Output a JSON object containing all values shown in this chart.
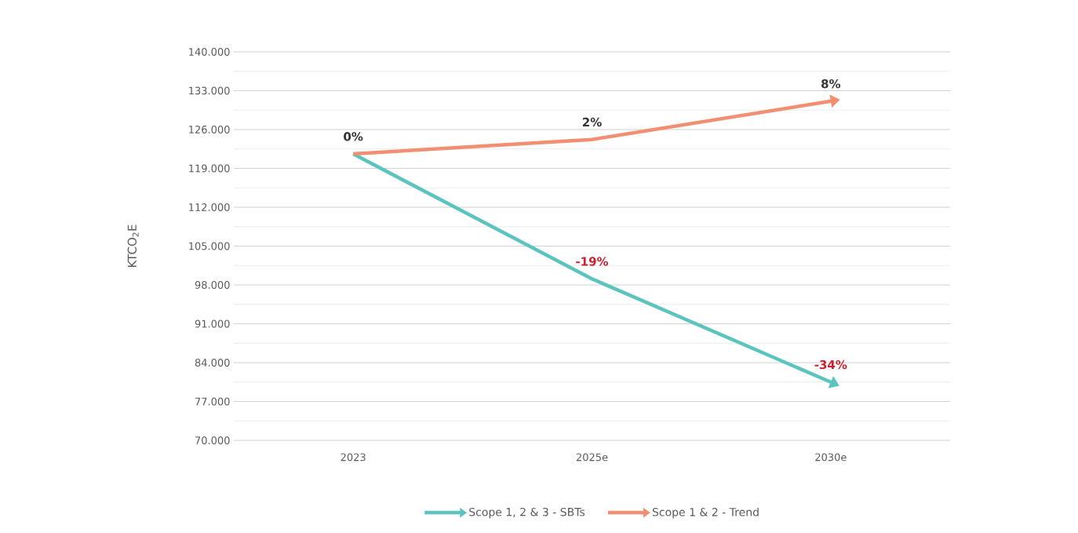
{
  "chart_data": {
    "type": "line",
    "ylabel": "KTCO$_{2}$E",
    "categories": [
      "2023",
      "2025e",
      "2030e"
    ],
    "series": [
      {
        "name": "Scope 1, 2 & 3 - SBTs",
        "color": "#5bc4bf",
        "values": [
          121600,
          99100,
          80500
        ]
      },
      {
        "name": "Scope 1 & 2 - Trend",
        "color": "#f28e72",
        "values": [
          121600,
          124200,
          131100
        ]
      }
    ],
    "annotations": [
      {
        "text": "0%",
        "x": "2023",
        "y": 121600
      },
      {
        "text": "2%",
        "x": "2025e",
        "y": 124200
      },
      {
        "text": "8%",
        "x": "2030e",
        "y": 131100
      },
      {
        "text": "-19%",
        "x": "2025e",
        "y": 99100
      },
      {
        "text": "-34%",
        "x": "2030e",
        "y": 80500
      }
    ],
    "ylim": [
      70000,
      140000
    ],
    "yticks": [
      {
        "value": 70000,
        "label": "70.000"
      },
      {
        "value": 77000,
        "label": "77.000"
      },
      {
        "value": 84000,
        "label": "84.000"
      },
      {
        "value": 91000,
        "label": "91.000"
      },
      {
        "value": 98000,
        "label": "98.000"
      },
      {
        "value": 105000,
        "label": "105.000"
      },
      {
        "value": 112000,
        "label": "112.000"
      },
      {
        "value": 119000,
        "label": "119.000"
      },
      {
        "value": 126000,
        "label": "126.000"
      },
      {
        "value": 133000,
        "label": "133.000"
      },
      {
        "value": 140000,
        "label": "140.000"
      }
    ],
    "grid": "y",
    "legend": "bottom",
    "marker": "none",
    "line_style": "solid"
  }
}
